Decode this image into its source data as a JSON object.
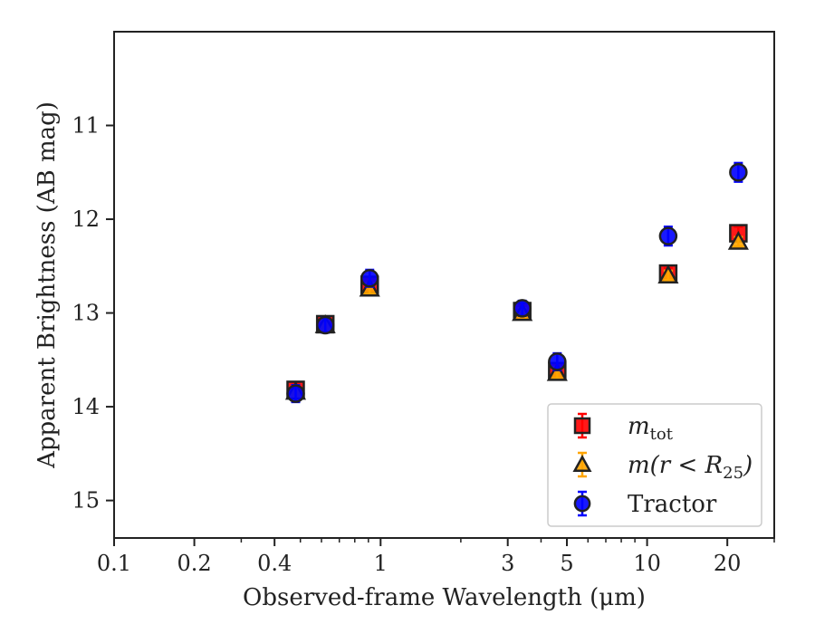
{
  "chart_data": {
    "type": "scatter",
    "xlabel": "Observed-frame Wavelength (μm)",
    "ylabel": "Apparent Brightness (AB mag)",
    "xscale": "log",
    "xlim": [
      0.1,
      30
    ],
    "ylim": [
      15.4,
      10.0
    ],
    "y_inverted": true,
    "x_ticks": [
      0.1,
      0.2,
      0.4,
      1,
      3,
      5,
      10,
      20
    ],
    "x_tick_labels": [
      "0.1",
      "0.2",
      "0.4",
      "1",
      "3",
      "5",
      "10",
      "20"
    ],
    "y_ticks": [
      11,
      12,
      13,
      14,
      15
    ],
    "y_tick_labels": [
      "11",
      "12",
      "13",
      "14",
      "15"
    ],
    "grid": false,
    "legend_position": "bottom-right",
    "legend": [
      {
        "name": "m_tot",
        "label_main": "m",
        "label_sub": "tot"
      },
      {
        "name": "m(r<R25)",
        "label_main": "m(r < R",
        "label_sub": "25",
        "label_tail": ")"
      },
      {
        "name": "Tractor",
        "label_main": "Tractor"
      }
    ],
    "series": [
      {
        "name": "m_tot",
        "marker": "square",
        "color": "#ff0000",
        "points": [
          {
            "x": 0.48,
            "y": 13.82,
            "err": 0.08
          },
          {
            "x": 0.62,
            "y": 13.12,
            "err": 0.06
          },
          {
            "x": 0.91,
            "y": 12.7,
            "err": 0.07
          },
          {
            "x": 3.4,
            "y": 12.98,
            "err": 0.06
          },
          {
            "x": 4.6,
            "y": 13.62,
            "err": 0.08
          },
          {
            "x": 12.0,
            "y": 12.58,
            "err": 0.06
          },
          {
            "x": 22.0,
            "y": 12.15,
            "err": 0.07
          }
        ]
      },
      {
        "name": "m(r<R25)",
        "marker": "triangle",
        "color": "#ffa500",
        "points": [
          {
            "x": 0.48,
            "y": 13.84,
            "err": 0.05
          },
          {
            "x": 0.62,
            "y": 13.13,
            "err": 0.05
          },
          {
            "x": 0.91,
            "y": 12.74,
            "err": 0.06
          },
          {
            "x": 3.4,
            "y": 13.0,
            "err": 0.05
          },
          {
            "x": 4.6,
            "y": 13.64,
            "err": 0.06
          },
          {
            "x": 12.0,
            "y": 12.6,
            "err": 0.05
          },
          {
            "x": 22.0,
            "y": 12.24,
            "err": 0.05
          }
        ]
      },
      {
        "name": "Tractor",
        "marker": "circle",
        "color": "#0000ff",
        "points": [
          {
            "x": 0.48,
            "y": 13.86,
            "err": 0.09
          },
          {
            "x": 0.62,
            "y": 13.13,
            "err": 0.08
          },
          {
            "x": 0.91,
            "y": 12.63,
            "err": 0.09
          },
          {
            "x": 3.4,
            "y": 12.95,
            "err": 0.08
          },
          {
            "x": 4.6,
            "y": 13.52,
            "err": 0.09
          },
          {
            "x": 12.0,
            "y": 12.18,
            "err": 0.1
          },
          {
            "x": 22.0,
            "y": 11.5,
            "err": 0.1
          }
        ]
      }
    ]
  }
}
